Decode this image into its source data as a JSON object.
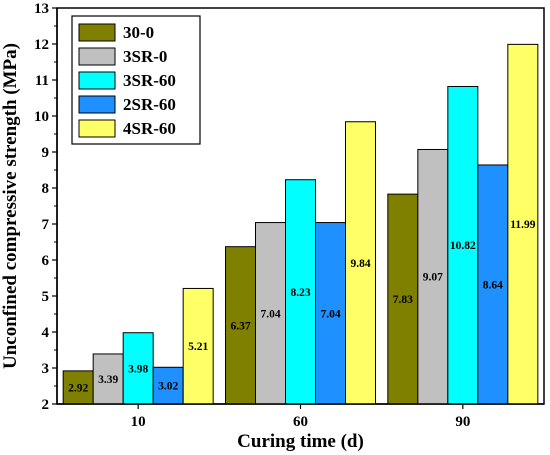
{
  "chart_data": {
    "type": "bar",
    "title": "",
    "xlabel": "Curing time (d)",
    "ylabel": "Unconfined compressive strength (MPa)",
    "categories": [
      "10",
      "60",
      "90"
    ],
    "ylim": [
      2,
      13
    ],
    "yticks": [
      "2",
      "3",
      "4",
      "5",
      "6",
      "7",
      "8",
      "9",
      "10",
      "11",
      "12",
      "13"
    ],
    "legend_position": "top-left",
    "series": [
      {
        "name": "30-0",
        "color": "#808000",
        "values": [
          2.92,
          6.37,
          7.83
        ],
        "labels": [
          "2.92",
          "6.37",
          "7.83"
        ]
      },
      {
        "name": "3SR-0",
        "color": "#c0c0c0",
        "values": [
          3.39,
          7.04,
          9.07
        ],
        "labels": [
          "3.39",
          "7.04",
          "9.07"
        ]
      },
      {
        "name": "3SR-60",
        "color": "#00ffff",
        "values": [
          3.98,
          8.23,
          10.82
        ],
        "labels": [
          "3.98",
          "8.23",
          "10.82"
        ]
      },
      {
        "name": "2SR-60",
        "color": "#1e90ff",
        "values": [
          3.02,
          7.04,
          8.64
        ],
        "labels": [
          "3.02",
          "7.04",
          "8.64"
        ]
      },
      {
        "name": "4SR-60",
        "color": "#ffff66",
        "values": [
          5.21,
          9.84,
          11.99
        ],
        "labels": [
          "5.21",
          "9.84",
          "11.99"
        ]
      }
    ]
  }
}
